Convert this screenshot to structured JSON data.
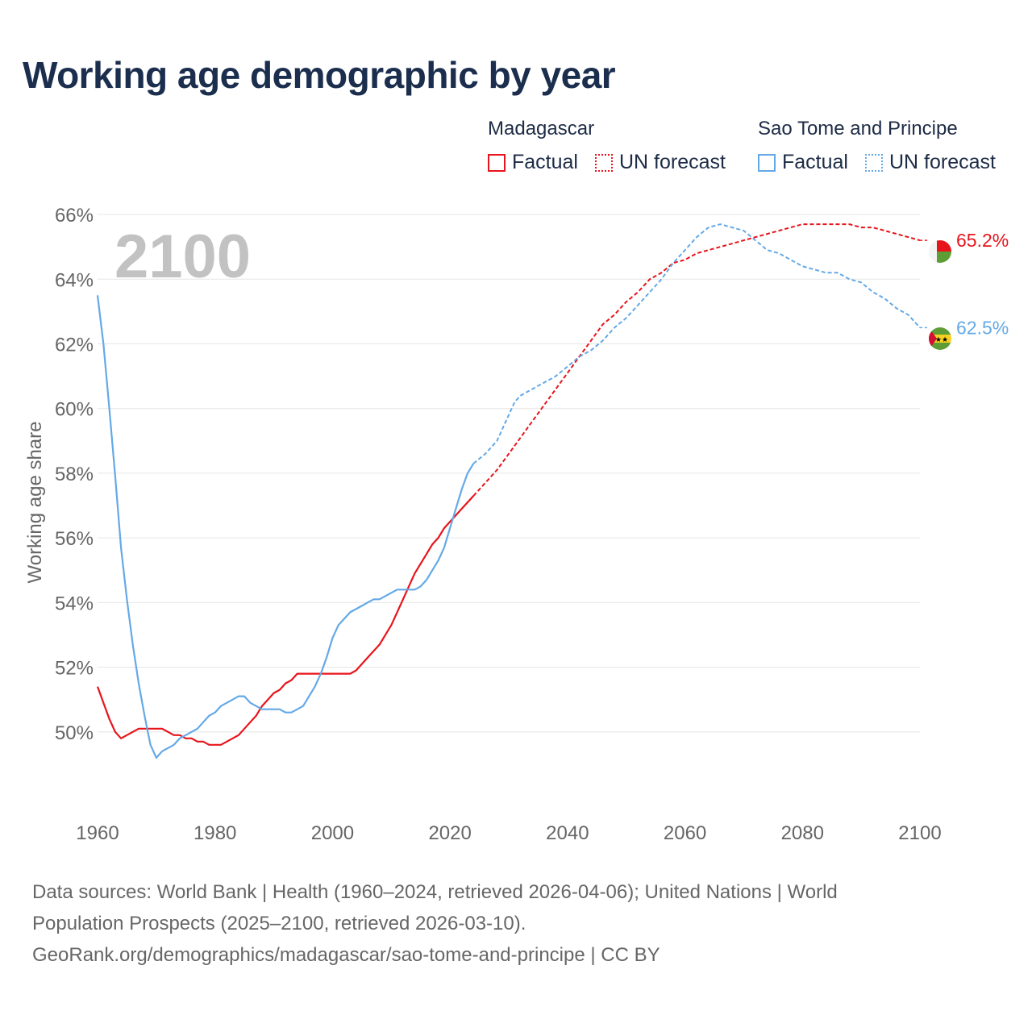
{
  "title": "Working age demographic by year",
  "year_watermark": "2100",
  "legend": {
    "groups": [
      {
        "country": "Madagascar",
        "factual_label": "Factual",
        "forecast_label": "UN forecast",
        "color": "#e8141b"
      },
      {
        "country": "Sao Tome and Principe",
        "factual_label": "Factual",
        "forecast_label": "UN forecast",
        "color": "#64a9e6"
      }
    ]
  },
  "footer": {
    "line1": "Data sources: World Bank | Health (1960–2024, retrieved 2026-04-06); United Nations | World",
    "line2": "Population Prospects (2025–2100, retrieved 2026-03-10).",
    "line3": "GeoRank.org/demographics/madagascar/sao-tome-and-principe | CC BY"
  },
  "colors": {
    "madagascar": "#e8141b",
    "sao_tome": "#64a9e6",
    "grid": "#e6e6e6",
    "axis_text": "#666666",
    "watermark": "#c2c2c2"
  },
  "chart_data": {
    "type": "line",
    "title": "Working age demographic by year",
    "xlabel": "",
    "ylabel": "Working age share",
    "xlim": [
      1960,
      2100
    ],
    "ylim": [
      47.8,
      66.6
    ],
    "xticks": [
      {
        "value": 1960,
        "label": "1960"
      },
      {
        "value": 1980,
        "label": "1980"
      },
      {
        "value": 2000,
        "label": "2000"
      },
      {
        "value": 2020,
        "label": "2020"
      },
      {
        "value": 2040,
        "label": "2040"
      },
      {
        "value": 2060,
        "label": "2060"
      },
      {
        "value": 2080,
        "label": "2080"
      },
      {
        "value": 2100,
        "label": "2100"
      }
    ],
    "yticks": [
      {
        "value": 50,
        "label": "50%"
      },
      {
        "value": 52,
        "label": "52%"
      },
      {
        "value": 54,
        "label": "54%"
      },
      {
        "value": 56,
        "label": "56%"
      },
      {
        "value": 58,
        "label": "58%"
      },
      {
        "value": 60,
        "label": "60%"
      },
      {
        "value": 62,
        "label": "62%"
      },
      {
        "value": 64,
        "label": "64%"
      },
      {
        "value": 66,
        "label": "66%"
      }
    ],
    "forecast_start": 2024,
    "series": [
      {
        "name": "Madagascar",
        "color": "#e8141b",
        "end_label": "65.2%",
        "points": [
          [
            1960,
            51.4
          ],
          [
            1961,
            50.9
          ],
          [
            1962,
            50.4
          ],
          [
            1963,
            50.0
          ],
          [
            1964,
            49.8
          ],
          [
            1965,
            49.9
          ],
          [
            1967,
            50.1
          ],
          [
            1970,
            50.1
          ],
          [
            1971,
            50.1
          ],
          [
            1973,
            49.9
          ],
          [
            1974,
            49.9
          ],
          [
            1975,
            49.8
          ],
          [
            1976,
            49.8
          ],
          [
            1977,
            49.7
          ],
          [
            1978,
            49.7
          ],
          [
            1979,
            49.6
          ],
          [
            1981,
            49.6
          ],
          [
            1982,
            49.7
          ],
          [
            1984,
            49.9
          ],
          [
            1985,
            50.1
          ],
          [
            1986,
            50.3
          ],
          [
            1987,
            50.5
          ],
          [
            1988,
            50.8
          ],
          [
            1989,
            51.0
          ],
          [
            1990,
            51.2
          ],
          [
            1991,
            51.3
          ],
          [
            1992,
            51.5
          ],
          [
            1993,
            51.6
          ],
          [
            1994,
            51.8
          ],
          [
            1996,
            51.8
          ],
          [
            2003,
            51.8
          ],
          [
            2004,
            51.9
          ],
          [
            2005,
            52.1
          ],
          [
            2006,
            52.3
          ],
          [
            2007,
            52.5
          ],
          [
            2008,
            52.7
          ],
          [
            2009,
            53.0
          ],
          [
            2010,
            53.3
          ],
          [
            2011,
            53.7
          ],
          [
            2012,
            54.1
          ],
          [
            2013,
            54.5
          ],
          [
            2014,
            54.9
          ],
          [
            2015,
            55.2
          ],
          [
            2016,
            55.5
          ],
          [
            2017,
            55.8
          ],
          [
            2018,
            56.0
          ],
          [
            2019,
            56.3
          ],
          [
            2020,
            56.5
          ],
          [
            2021,
            56.7
          ],
          [
            2022,
            56.9
          ],
          [
            2023,
            57.1
          ],
          [
            2024,
            57.3
          ],
          [
            2026,
            57.7
          ],
          [
            2028,
            58.1
          ],
          [
            2030,
            58.6
          ],
          [
            2032,
            59.1
          ],
          [
            2034,
            59.6
          ],
          [
            2036,
            60.1
          ],
          [
            2038,
            60.6
          ],
          [
            2040,
            61.1
          ],
          [
            2042,
            61.6
          ],
          [
            2044,
            62.1
          ],
          [
            2046,
            62.6
          ],
          [
            2048,
            62.9
          ],
          [
            2050,
            63.3
          ],
          [
            2052,
            63.6
          ],
          [
            2054,
            64.0
          ],
          [
            2056,
            64.2
          ],
          [
            2058,
            64.5
          ],
          [
            2060,
            64.6
          ],
          [
            2062,
            64.8
          ],
          [
            2064,
            64.9
          ],
          [
            2066,
            65.0
          ],
          [
            2068,
            65.1
          ],
          [
            2070,
            65.2
          ],
          [
            2072,
            65.3
          ],
          [
            2074,
            65.4
          ],
          [
            2076,
            65.5
          ],
          [
            2078,
            65.6
          ],
          [
            2080,
            65.7
          ],
          [
            2082,
            65.7
          ],
          [
            2084,
            65.7
          ],
          [
            2086,
            65.7
          ],
          [
            2088,
            65.7
          ],
          [
            2090,
            65.6
          ],
          [
            2092,
            65.6
          ],
          [
            2094,
            65.5
          ],
          [
            2096,
            65.4
          ],
          [
            2098,
            65.3
          ],
          [
            2100,
            65.2
          ]
        ]
      },
      {
        "name": "Sao Tome and Principe",
        "color": "#64a9e6",
        "end_label": "62.5%",
        "points": [
          [
            1960,
            63.5
          ],
          [
            1961,
            62.0
          ],
          [
            1962,
            60.0
          ],
          [
            1963,
            57.9
          ],
          [
            1964,
            55.7
          ],
          [
            1965,
            54.1
          ],
          [
            1966,
            52.7
          ],
          [
            1967,
            51.5
          ],
          [
            1968,
            50.5
          ],
          [
            1969,
            49.6
          ],
          [
            1970,
            49.2
          ],
          [
            1971,
            49.4
          ],
          [
            1972,
            49.5
          ],
          [
            1973,
            49.6
          ],
          [
            1974,
            49.8
          ],
          [
            1975,
            49.9
          ],
          [
            1976,
            50.0
          ],
          [
            1977,
            50.1
          ],
          [
            1978,
            50.3
          ],
          [
            1979,
            50.5
          ],
          [
            1980,
            50.6
          ],
          [
            1981,
            50.8
          ],
          [
            1982,
            50.9
          ],
          [
            1983,
            51.0
          ],
          [
            1984,
            51.1
          ],
          [
            1985,
            51.1
          ],
          [
            1986,
            50.9
          ],
          [
            1987,
            50.8
          ],
          [
            1988,
            50.7
          ],
          [
            1991,
            50.7
          ],
          [
            1992,
            50.6
          ],
          [
            1993,
            50.6
          ],
          [
            1994,
            50.7
          ],
          [
            1995,
            50.8
          ],
          [
            1996,
            51.1
          ],
          [
            1997,
            51.4
          ],
          [
            1998,
            51.8
          ],
          [
            1999,
            52.3
          ],
          [
            2000,
            52.9
          ],
          [
            2001,
            53.3
          ],
          [
            2002,
            53.5
          ],
          [
            2003,
            53.7
          ],
          [
            2004,
            53.8
          ],
          [
            2005,
            53.9
          ],
          [
            2006,
            54.0
          ],
          [
            2007,
            54.1
          ],
          [
            2008,
            54.1
          ],
          [
            2009,
            54.2
          ],
          [
            2010,
            54.3
          ],
          [
            2011,
            54.4
          ],
          [
            2014,
            54.4
          ],
          [
            2015,
            54.5
          ],
          [
            2016,
            54.7
          ],
          [
            2017,
            55.0
          ],
          [
            2018,
            55.3
          ],
          [
            2019,
            55.7
          ],
          [
            2020,
            56.3
          ],
          [
            2021,
            56.9
          ],
          [
            2022,
            57.5
          ],
          [
            2023,
            58.0
          ],
          [
            2024,
            58.3
          ],
          [
            2026,
            58.6
          ],
          [
            2028,
            59.0
          ],
          [
            2030,
            59.8
          ],
          [
            2031,
            60.2
          ],
          [
            2032,
            60.4
          ],
          [
            2034,
            60.6
          ],
          [
            2036,
            60.8
          ],
          [
            2038,
            61.0
          ],
          [
            2040,
            61.3
          ],
          [
            2042,
            61.6
          ],
          [
            2044,
            61.8
          ],
          [
            2046,
            62.1
          ],
          [
            2048,
            62.5
          ],
          [
            2050,
            62.8
          ],
          [
            2052,
            63.2
          ],
          [
            2054,
            63.6
          ],
          [
            2056,
            64.0
          ],
          [
            2058,
            64.5
          ],
          [
            2060,
            64.9
          ],
          [
            2062,
            65.3
          ],
          [
            2064,
            65.6
          ],
          [
            2066,
            65.7
          ],
          [
            2068,
            65.6
          ],
          [
            2070,
            65.5
          ],
          [
            2072,
            65.2
          ],
          [
            2074,
            64.9
          ],
          [
            2076,
            64.8
          ],
          [
            2078,
            64.6
          ],
          [
            2080,
            64.4
          ],
          [
            2082,
            64.3
          ],
          [
            2084,
            64.2
          ],
          [
            2086,
            64.2
          ],
          [
            2088,
            64.0
          ],
          [
            2090,
            63.9
          ],
          [
            2092,
            63.6
          ],
          [
            2094,
            63.4
          ],
          [
            2096,
            63.1
          ],
          [
            2098,
            62.9
          ],
          [
            2100,
            62.5
          ]
        ]
      }
    ]
  }
}
